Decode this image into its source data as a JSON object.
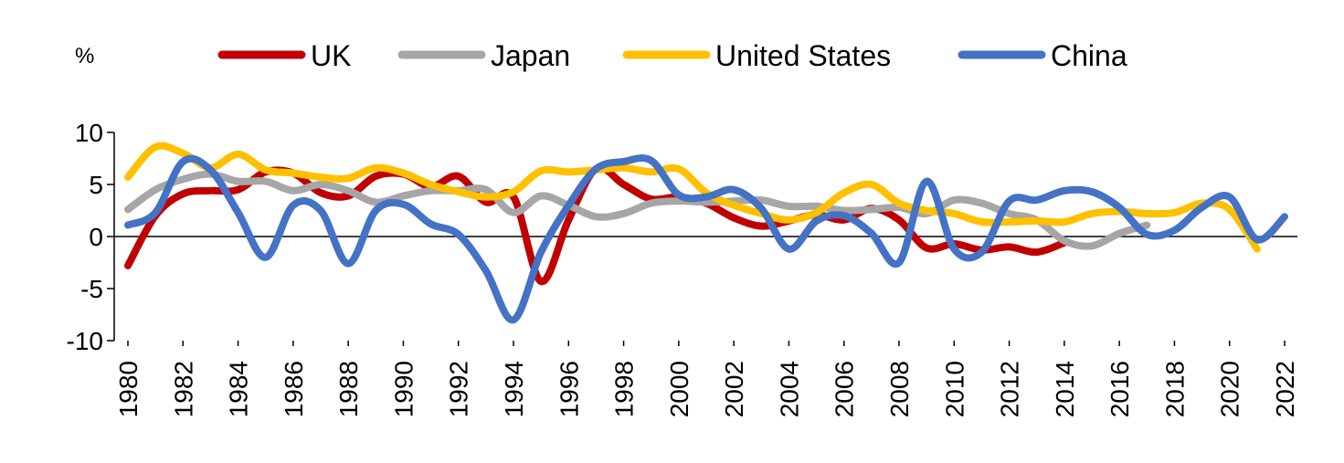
{
  "chart_data": {
    "type": "line",
    "title": "",
    "unit_label": "%",
    "xlabel": "",
    "ylabel": "",
    "ylim": [
      -10,
      10
    ],
    "yticks": [
      -10,
      -5,
      0,
      5,
      10
    ],
    "x": [
      1980,
      1981,
      1982,
      1983,
      1984,
      1985,
      1986,
      1987,
      1988,
      1989,
      1990,
      1991,
      1992,
      1993,
      1994,
      1995,
      1996,
      1997,
      1998,
      1999,
      2000,
      2001,
      2002,
      2003,
      2004,
      2005,
      2006,
      2007,
      2008,
      2009,
      2010,
      2011,
      2012,
      2013,
      2014,
      2015,
      2016,
      2017,
      2018,
      2019,
      2020,
      2021,
      2022
    ],
    "xticks": [
      1980,
      1982,
      1984,
      1986,
      1988,
      1990,
      1992,
      1994,
      1996,
      1998,
      2000,
      2002,
      2004,
      2006,
      2008,
      2010,
      2012,
      2014,
      2016,
      2018,
      2020,
      2022
    ],
    "legend_position": "top",
    "series": [
      {
        "name": "UK",
        "color": "#C00000",
        "values": [
          -2.8,
          2.0,
          4.1,
          4.4,
          4.5,
          6.2,
          6.1,
          4.2,
          3.9,
          5.8,
          6.0,
          4.8,
          5.8,
          3.3,
          3.8,
          -4.3,
          1.6,
          6.5,
          5.0,
          3.6,
          3.8,
          3.2,
          1.8,
          1.0,
          1.5,
          2.1,
          1.6,
          2.7,
          1.6,
          -1.1,
          -0.7,
          -1.3,
          -1.0,
          -1.5,
          -0.6,
          null,
          null,
          null,
          null,
          null,
          null,
          null,
          null
        ]
      },
      {
        "name": "Japan",
        "color": "#A6A6A6",
        "values": [
          2.6,
          4.5,
          5.5,
          6.0,
          5.3,
          5.3,
          4.4,
          5.0,
          4.4,
          3.3,
          3.9,
          4.4,
          4.4,
          4.5,
          2.3,
          3.9,
          3.0,
          1.9,
          2.2,
          3.2,
          3.4,
          3.3,
          3.4,
          3.5,
          2.9,
          2.9,
          2.5,
          2.6,
          2.8,
          2.2,
          3.5,
          3.2,
          2.2,
          1.6,
          -0.4,
          -0.9,
          0.3,
          1.1,
          null,
          null,
          null,
          null,
          null
        ]
      },
      {
        "name": "United States",
        "color": "#FFC000",
        "values": [
          5.7,
          8.6,
          8.0,
          6.6,
          7.9,
          6.4,
          6.1,
          5.7,
          5.6,
          6.6,
          6.1,
          5.0,
          4.3,
          3.8,
          4.3,
          6.3,
          6.2,
          6.4,
          6.6,
          6.2,
          6.5,
          4.2,
          3.0,
          2.2,
          1.6,
          2.3,
          4.2,
          5.0,
          3.2,
          2.5,
          2.2,
          1.4,
          1.4,
          1.5,
          1.4,
          2.2,
          2.4,
          2.2,
          2.3,
          3.2,
          2.6,
          -1.2,
          null
        ]
      },
      {
        "name": "China",
        "color": "#4472C4",
        "values": [
          1.1,
          2.3,
          7.2,
          6.4,
          2.3,
          -2.0,
          3.0,
          2.5,
          -2.6,
          2.5,
          3.1,
          1.2,
          0.2,
          -3.3,
          -8.0,
          -1.5,
          3.0,
          6.5,
          7.2,
          7.3,
          4.0,
          3.8,
          4.5,
          2.7,
          -1.2,
          1.5,
          2.0,
          0.3,
          -2.5,
          5.3,
          -1.2,
          -1.5,
          3.4,
          3.5,
          4.4,
          4.3,
          2.8,
          0.2,
          0.6,
          2.8,
          3.8,
          -0.3,
          1.9
        ]
      }
    ]
  }
}
